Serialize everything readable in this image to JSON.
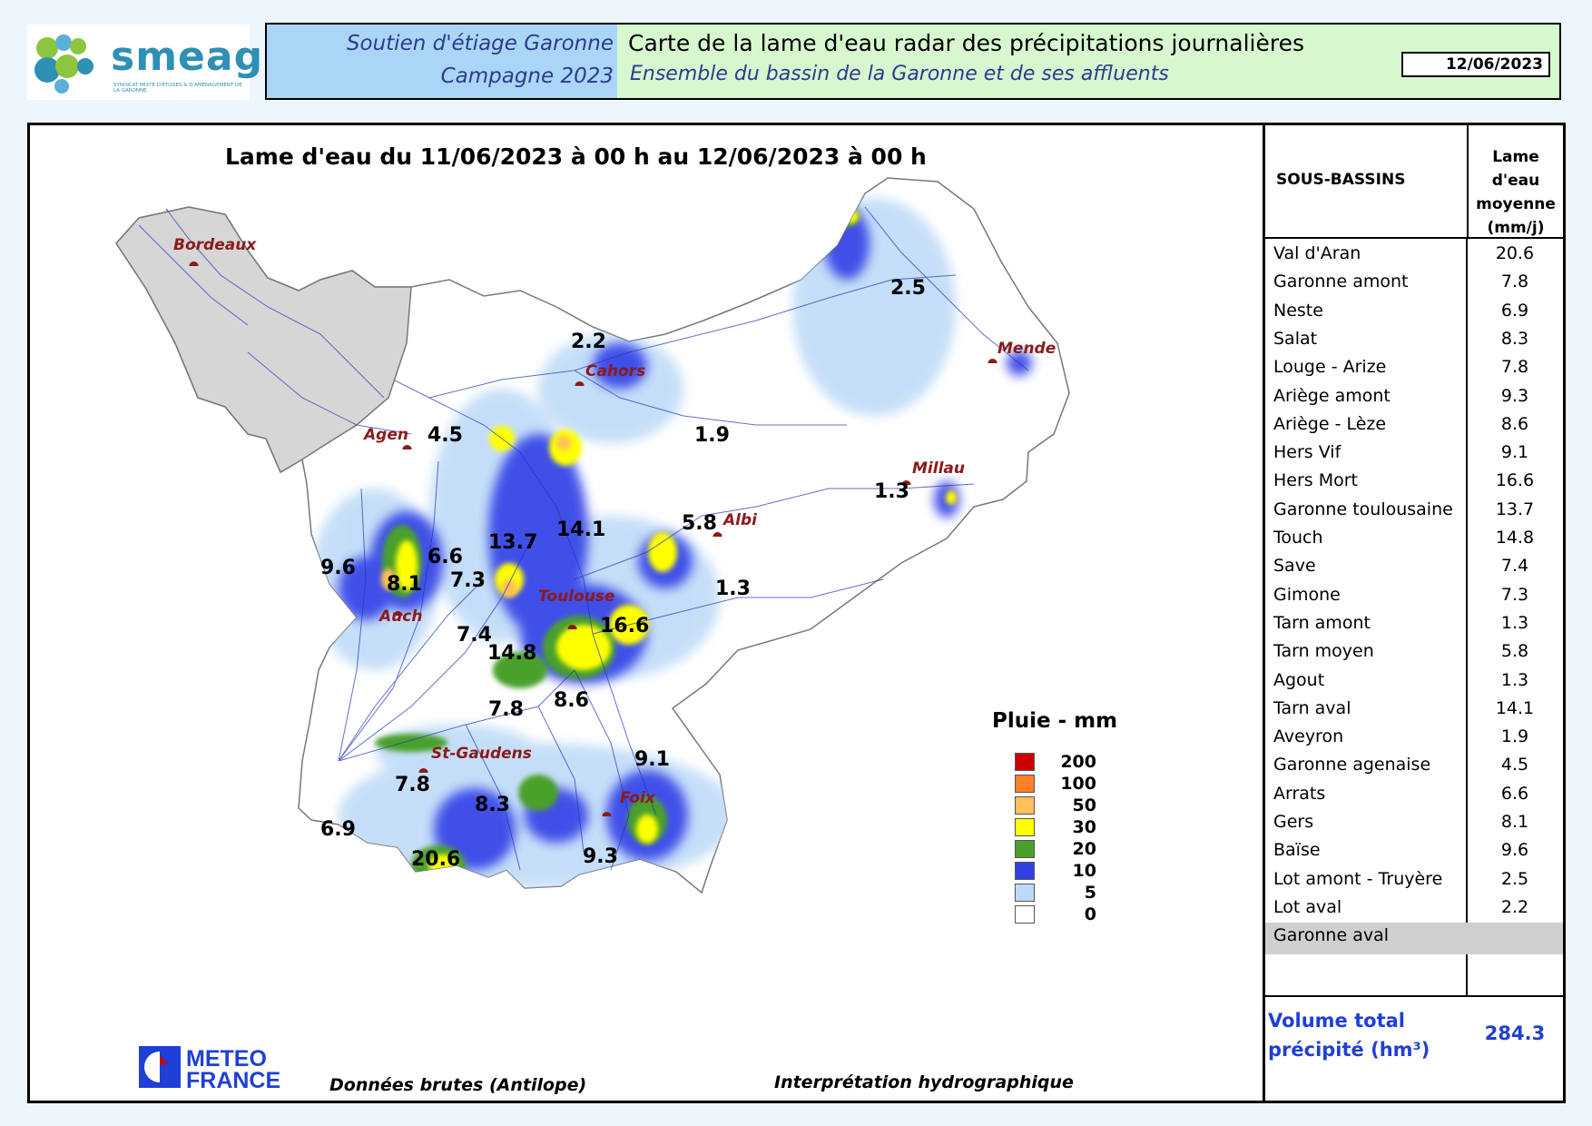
{
  "header": {
    "logo_text": "smeag",
    "logo_subtitle": "Syndicat mixte d'études & d'aménagement de la Garonne",
    "campaign_label": "Soutien d'étiage Garonne",
    "campaign_year": "Campagne 2023",
    "title": "Carte de la lame d'eau radar des précipitations journalières",
    "subtitle": "Ensemble du bassin de la Garonne et de ses affluents",
    "date": "12/06/2023"
  },
  "map": {
    "title": "Lame d'eau du 11/06/2023 à 00 h au 12/06/2023 à 00 h",
    "cities": [
      {
        "name": "Bordeaux"
      },
      {
        "name": "Cahors"
      },
      {
        "name": "Mende"
      },
      {
        "name": "Agen"
      },
      {
        "name": "Millau"
      },
      {
        "name": "Albi"
      },
      {
        "name": "Auch"
      },
      {
        "name": "Toulouse"
      },
      {
        "name": "St-Gaudens"
      },
      {
        "name": "Foix"
      }
    ],
    "region_values": [
      "2.5",
      "2.2",
      "4.5",
      "1.9",
      "1.3",
      "5.8",
      "13.7",
      "14.1",
      "9.6",
      "6.6",
      "8.1",
      "7.3",
      "1.3",
      "16.6",
      "7.4",
      "14.8",
      "7.8",
      "8.6",
      "9.1",
      "7.8",
      "8.3",
      "6.9",
      "20.6",
      "9.3"
    ]
  },
  "legend": {
    "title": "Pluie - mm",
    "items": [
      {
        "label": "200",
        "color": "#cc0000"
      },
      {
        "label": "100",
        "color": "#ff7f27"
      },
      {
        "label": "50",
        "color": "#ffbf5a"
      },
      {
        "label": "30",
        "color": "#ffff00"
      },
      {
        "label": "20",
        "color": "#4aa02c"
      },
      {
        "label": "10",
        "color": "#3340e6"
      },
      {
        "label": "5",
        "color": "#bcd9f7"
      },
      {
        "label": "0",
        "color": "#ffffff"
      }
    ]
  },
  "footer": {
    "meteo_logo_line1": "METEO",
    "meteo_logo_line2": "FRANCE",
    "source": "Données brutes (Antilope)",
    "interpretation": "Interprétation hydrographique"
  },
  "table": {
    "col_subbasin": "SOUS-BASSINS",
    "col_value_lines": [
      "Lame d'eau",
      "moyenne",
      "(mm/j)"
    ],
    "rows": [
      {
        "name": "Val d'Aran",
        "value": "20.6"
      },
      {
        "name": "Garonne amont",
        "value": "7.8"
      },
      {
        "name": "Neste",
        "value": "6.9"
      },
      {
        "name": "Salat",
        "value": "8.3"
      },
      {
        "name": "Louge - Arize",
        "value": "7.8"
      },
      {
        "name": "Ariège amont",
        "value": "9.3"
      },
      {
        "name": "Ariège - Lèze",
        "value": "8.6"
      },
      {
        "name": "Hers Vif",
        "value": "9.1"
      },
      {
        "name": "Hers Mort",
        "value": "16.6"
      },
      {
        "name": "Garonne toulousaine",
        "value": "13.7"
      },
      {
        "name": "Touch",
        "value": "14.8"
      },
      {
        "name": "Save",
        "value": "7.4"
      },
      {
        "name": "Gimone",
        "value": "7.3"
      },
      {
        "name": "Tarn amont",
        "value": "1.3"
      },
      {
        "name": "Tarn moyen",
        "value": "5.8"
      },
      {
        "name": "Agout",
        "value": "1.3"
      },
      {
        "name": "Tarn aval",
        "value": "14.1"
      },
      {
        "name": "Aveyron",
        "value": "1.9"
      },
      {
        "name": "Garonne agenaise",
        "value": "4.5"
      },
      {
        "name": "Arrats",
        "value": "6.6"
      },
      {
        "name": "Gers",
        "value": "8.1"
      },
      {
        "name": "Baïse",
        "value": "9.6"
      },
      {
        "name": "Lot amont - Truyère",
        "value": "2.5"
      },
      {
        "name": "Lot aval",
        "value": "2.2"
      },
      {
        "name": "Garonne aval",
        "value": ""
      }
    ],
    "volume_label": "Volume total précipité (hm³)",
    "volume_value": "284.3"
  }
}
